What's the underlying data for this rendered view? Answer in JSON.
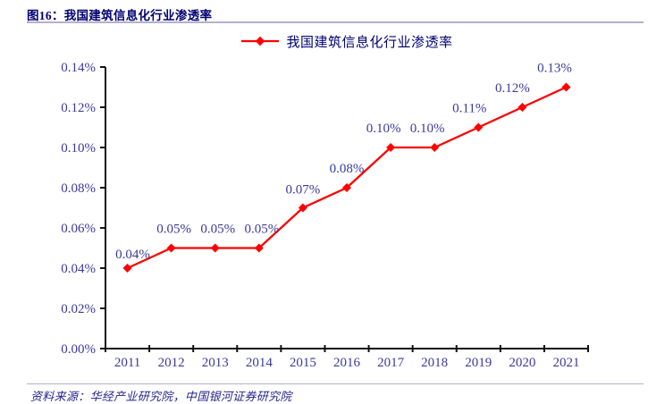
{
  "header": {
    "title": "图16：我国建筑信息化行业渗透率"
  },
  "legend": {
    "label": "我国建筑信息化行业渗透率",
    "marker_icon": "diamond-line-icon"
  },
  "footer": {
    "source": "资料来源：华经产业研究院，中国银河证券研究院"
  },
  "colors": {
    "title": "#000073",
    "axis_text": "#3a3a9c",
    "series": "#fe0000",
    "rule": "#b5b0cc",
    "axis_line": "#111111",
    "source_text": "#24248f",
    "background": "#ffffff"
  },
  "chart_data": {
    "type": "line",
    "title": "我国建筑信息化行业渗透率",
    "categories": [
      "2011",
      "2012",
      "2013",
      "2014",
      "2015",
      "2016",
      "2017",
      "2018",
      "2019",
      "2020",
      "2021"
    ],
    "series": [
      {
        "name": "我国建筑信息化行业渗透率",
        "values": [
          0.04,
          0.05,
          0.05,
          0.05,
          0.07,
          0.08,
          0.1,
          0.1,
          0.11,
          0.12,
          0.13
        ]
      }
    ],
    "data_labels": [
      "0.04%",
      "0.05%",
      "0.05%",
      "0.05%",
      "0.07%",
      "0.08%",
      "0.10%",
      "0.10%",
      "0.11%",
      "0.12%",
      "0.13%"
    ],
    "yticks": [
      "0.00%",
      "0.02%",
      "0.04%",
      "0.06%",
      "0.08%",
      "0.10%",
      "0.12%",
      "0.14%"
    ],
    "ylim": [
      0,
      0.14
    ],
    "xlabel": "",
    "ylabel": "",
    "grid": false,
    "legend_position": "top",
    "marker": "diamond"
  }
}
